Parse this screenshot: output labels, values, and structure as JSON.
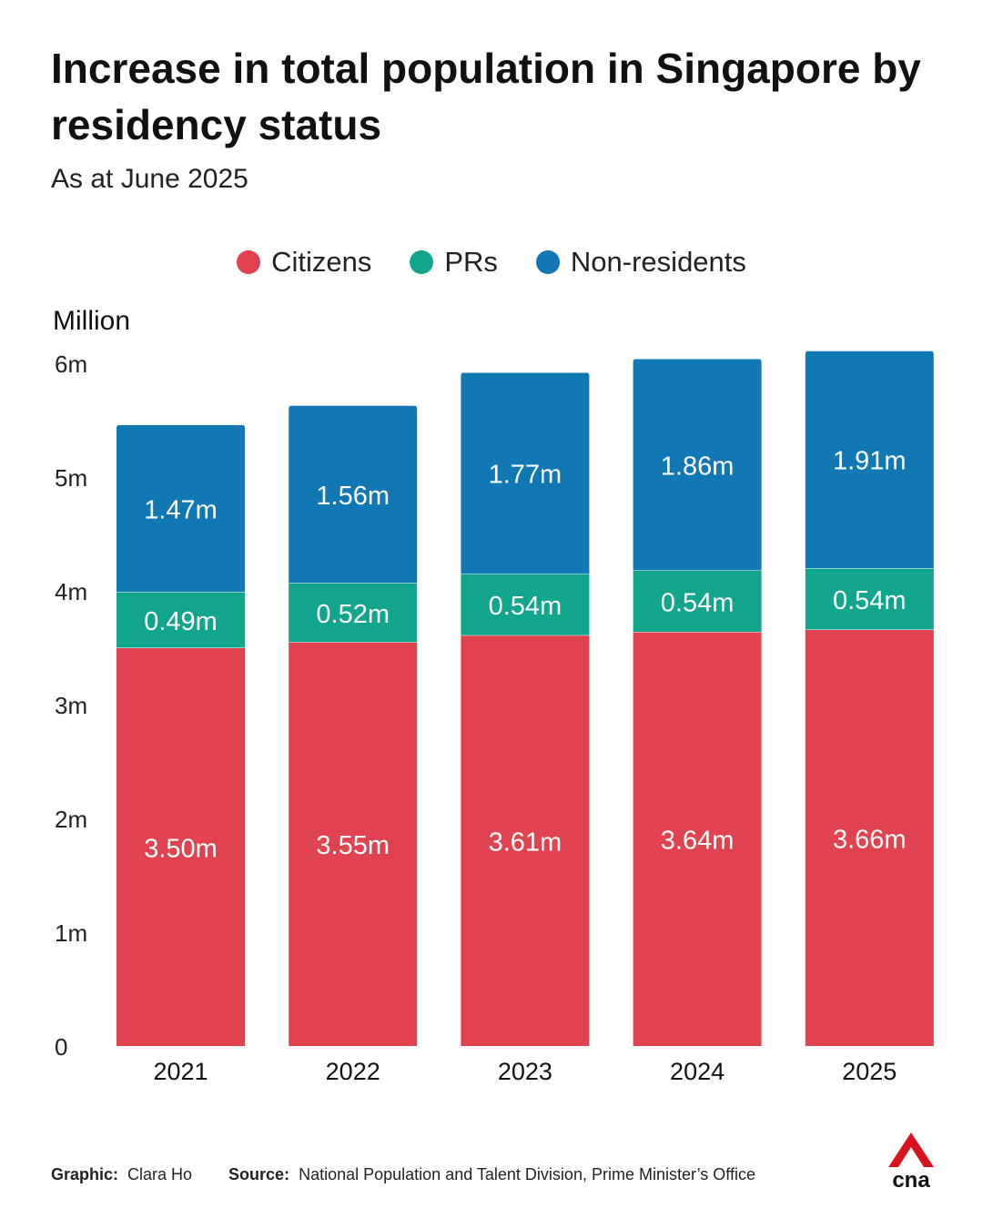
{
  "header": {
    "title": "Increase in total population in Singapore by residency status",
    "subtitle": "As at June 2025"
  },
  "footer": {
    "graphic_label": "Graphic:",
    "graphic_value": "Clara Ho",
    "source_label": "Source:",
    "source_value": "National Population and Talent Division, Prime Minister’s Office",
    "logo_text": "cna"
  },
  "colors": {
    "citizens": "#E0424F",
    "prs": "#12A58E",
    "non_residents": "#1278B3",
    "logo_red": "#D8121F"
  },
  "chart_data": {
    "type": "bar",
    "stacked": true,
    "title": "Increase in total population in Singapore by residency status",
    "subtitle": "As at June 2025",
    "ylabel": "Million",
    "ylim": [
      0,
      6
    ],
    "yticks": [
      {
        "value": 0,
        "label": "0"
      },
      {
        "value": 1,
        "label": "1m"
      },
      {
        "value": 2,
        "label": "2m"
      },
      {
        "value": 3,
        "label": "3m"
      },
      {
        "value": 4,
        "label": "4m"
      },
      {
        "value": 5,
        "label": "5m"
      },
      {
        "value": 6,
        "label": "6m"
      }
    ],
    "grid": false,
    "legend_position": "top-center",
    "categories": [
      "2021",
      "2022",
      "2023",
      "2024",
      "2025"
    ],
    "series": [
      {
        "name": "Citizens",
        "color": "#E0424F",
        "values": [
          3.5,
          3.55,
          3.61,
          3.64,
          3.66
        ],
        "labels": [
          "3.50m",
          "3.55m",
          "3.61m",
          "3.64m",
          "3.66m"
        ]
      },
      {
        "name": "PRs",
        "color": "#12A58E",
        "values": [
          0.49,
          0.52,
          0.54,
          0.54,
          0.54
        ],
        "labels": [
          "0.49m",
          "0.52m",
          "0.54m",
          "0.54m",
          "0.54m"
        ]
      },
      {
        "name": "Non-residents",
        "color": "#1278B3",
        "values": [
          1.47,
          1.56,
          1.77,
          1.86,
          1.91
        ],
        "labels": [
          "1.47m",
          "1.56m",
          "1.77m",
          "1.86m",
          "1.91m"
        ]
      }
    ]
  }
}
